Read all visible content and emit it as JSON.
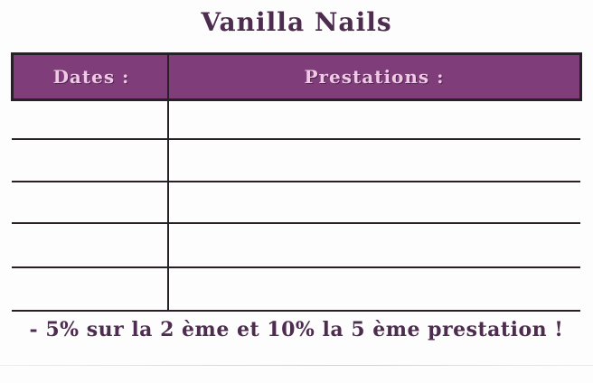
{
  "card": {
    "title": "Vanilla Nails",
    "table": {
      "columns": [
        {
          "label": "Dates :"
        },
        {
          "label": "Prestations :"
        }
      ],
      "rows": [
        {
          "date": "",
          "prestation": ""
        },
        {
          "date": "",
          "prestation": ""
        },
        {
          "date": "",
          "prestation": ""
        },
        {
          "date": "",
          "prestation": ""
        },
        {
          "date": "",
          "prestation": ""
        }
      ]
    },
    "footer_note": "- 5% sur la 2 ème et 10% la 5 ème prestation !"
  },
  "colors": {
    "band_purple": "#7f3e7a",
    "band_label_pink": "#efc9e5",
    "ink_purple": "#4e2c50",
    "line_dark": "#272027",
    "paper": "#fdfdfd"
  }
}
